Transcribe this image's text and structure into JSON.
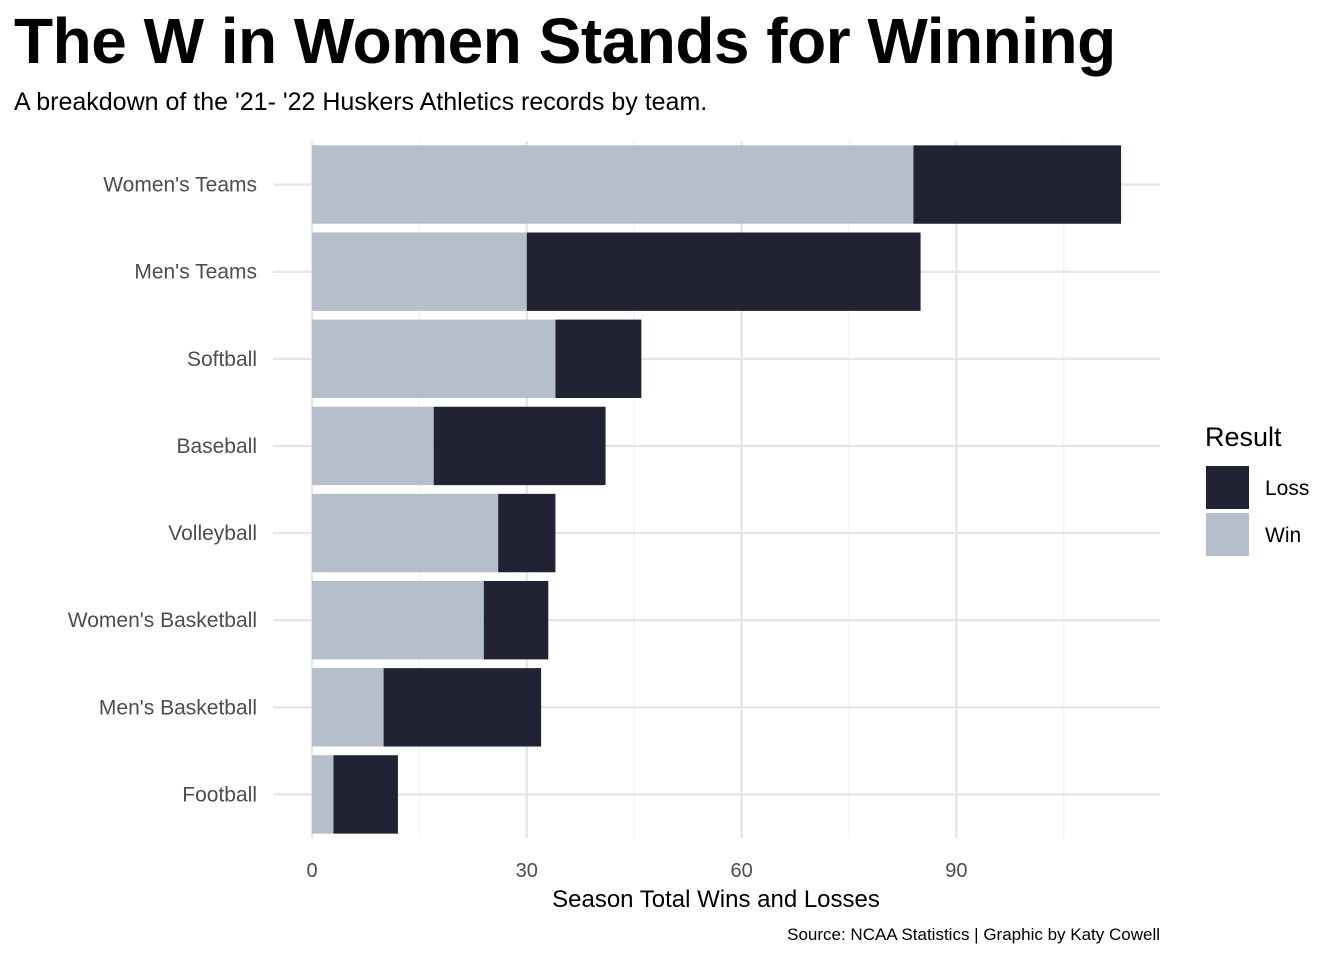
{
  "chart_data": {
    "type": "bar",
    "orientation": "horizontal",
    "stacked": true,
    "title": "The W in Women Stands for Winning",
    "subtitle": "A breakdown of the '21- '22 Huskers Athletics records by team.",
    "xlabel": "Season Total Wins and Losses",
    "caption": "Source: NCAA Statistics | Graphic by Katy Cowell",
    "categories": [
      "Women's Teams",
      "Men's Teams",
      "Softball",
      "Baseball",
      "Volleyball",
      "Women's Basketball",
      "Men's Basketball",
      "Football"
    ],
    "series": [
      {
        "name": "Win",
        "color": "#b5bfcc",
        "values": [
          84,
          30,
          34,
          17,
          26,
          24,
          10,
          3
        ]
      },
      {
        "name": "Loss",
        "color": "#212335",
        "values": [
          29,
          55,
          12,
          24,
          8,
          9,
          22,
          9
        ]
      }
    ],
    "xticks": [
      0,
      30,
      60,
      90
    ],
    "xlim": [
      0,
      118.5
    ],
    "grid": true,
    "legend": {
      "title": "Result",
      "placement": "right",
      "order": [
        "Loss",
        "Win"
      ]
    }
  }
}
